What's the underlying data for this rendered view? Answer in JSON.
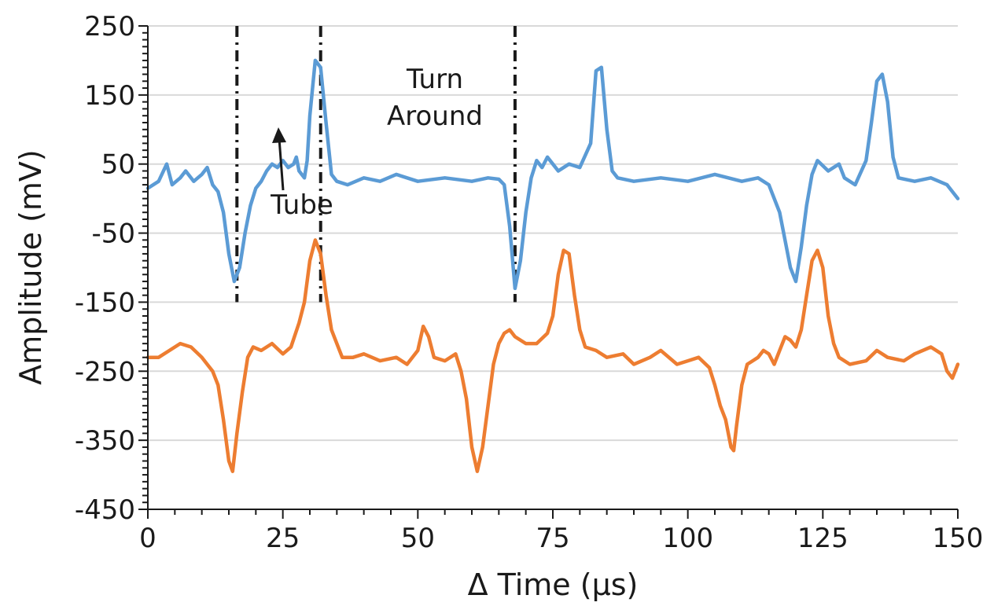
{
  "chart_data": {
    "type": "line",
    "title": "",
    "xlabel": "Δ Time (µs)",
    "ylabel": "Amplitude (mV)",
    "xlim": [
      0,
      150
    ],
    "ylim": [
      -450,
      250
    ],
    "xticks": [
      0,
      25,
      50,
      75,
      100,
      125,
      150
    ],
    "yticks": [
      250,
      150,
      50,
      -50,
      -150,
      -250,
      -350,
      -450
    ],
    "grid": "horizontal",
    "legend": "none",
    "series": [
      {
        "color": "#5b9bd5",
        "points": [
          [
            0,
            15
          ],
          [
            2,
            25
          ],
          [
            3.5,
            50
          ],
          [
            4.5,
            20
          ],
          [
            6,
            30
          ],
          [
            7,
            40
          ],
          [
            8.5,
            25
          ],
          [
            10,
            35
          ],
          [
            11,
            45
          ],
          [
            12,
            20
          ],
          [
            13,
            10
          ],
          [
            14,
            -20
          ],
          [
            15,
            -80
          ],
          [
            16,
            -120
          ],
          [
            17,
            -100
          ],
          [
            18,
            -50
          ],
          [
            19,
            -10
          ],
          [
            20,
            15
          ],
          [
            21,
            25
          ],
          [
            22,
            40
          ],
          [
            23,
            50
          ],
          [
            24,
            45
          ],
          [
            25,
            55
          ],
          [
            26,
            45
          ],
          [
            27,
            50
          ],
          [
            27.5,
            60
          ],
          [
            28,
            40
          ],
          [
            29,
            30
          ],
          [
            29.5,
            55
          ],
          [
            30,
            120
          ],
          [
            31,
            200
          ],
          [
            32,
            190
          ],
          [
            33,
            110
          ],
          [
            34,
            35
          ],
          [
            35,
            25
          ],
          [
            37,
            20
          ],
          [
            40,
            30
          ],
          [
            43,
            25
          ],
          [
            46,
            35
          ],
          [
            50,
            25
          ],
          [
            55,
            30
          ],
          [
            60,
            25
          ],
          [
            63,
            30
          ],
          [
            65,
            28
          ],
          [
            66,
            20
          ],
          [
            67,
            -40
          ],
          [
            68,
            -130
          ],
          [
            69,
            -90
          ],
          [
            70,
            -20
          ],
          [
            71,
            30
          ],
          [
            72,
            55
          ],
          [
            73,
            45
          ],
          [
            74,
            60
          ],
          [
            75,
            50
          ],
          [
            76,
            40
          ],
          [
            78,
            50
          ],
          [
            80,
            45
          ],
          [
            82,
            80
          ],
          [
            83,
            185
          ],
          [
            84,
            190
          ],
          [
            85,
            100
          ],
          [
            86,
            40
          ],
          [
            87,
            30
          ],
          [
            90,
            25
          ],
          [
            95,
            30
          ],
          [
            100,
            25
          ],
          [
            105,
            35
          ],
          [
            110,
            25
          ],
          [
            113,
            30
          ],
          [
            115,
            20
          ],
          [
            117,
            -20
          ],
          [
            119,
            -100
          ],
          [
            120,
            -120
          ],
          [
            121,
            -70
          ],
          [
            122,
            -10
          ],
          [
            123,
            35
          ],
          [
            124,
            55
          ],
          [
            126,
            40
          ],
          [
            128,
            50
          ],
          [
            129,
            30
          ],
          [
            131,
            20
          ],
          [
            133,
            55
          ],
          [
            134,
            110
          ],
          [
            135,
            170
          ],
          [
            136,
            180
          ],
          [
            137,
            140
          ],
          [
            138,
            60
          ],
          [
            139,
            30
          ],
          [
            142,
            25
          ],
          [
            145,
            30
          ],
          [
            148,
            20
          ],
          [
            150,
            0
          ]
        ]
      },
      {
        "color": "#ed7d31",
        "points": [
          [
            0,
            -230
          ],
          [
            2,
            -230
          ],
          [
            4,
            -220
          ],
          [
            6,
            -210
          ],
          [
            8,
            -215
          ],
          [
            10,
            -230
          ],
          [
            11,
            -240
          ],
          [
            12,
            -250
          ],
          [
            13,
            -270
          ],
          [
            14,
            -320
          ],
          [
            15,
            -380
          ],
          [
            15.7,
            -395
          ],
          [
            16.5,
            -340
          ],
          [
            17.5,
            -280
          ],
          [
            18.5,
            -230
          ],
          [
            19.5,
            -215
          ],
          [
            21,
            -220
          ],
          [
            23,
            -210
          ],
          [
            25,
            -225
          ],
          [
            26.5,
            -215
          ],
          [
            28,
            -180
          ],
          [
            29,
            -150
          ],
          [
            30,
            -90
          ],
          [
            31,
            -60
          ],
          [
            32,
            -80
          ],
          [
            33,
            -140
          ],
          [
            34,
            -190
          ],
          [
            35,
            -210
          ],
          [
            36,
            -230
          ],
          [
            38,
            -230
          ],
          [
            40,
            -225
          ],
          [
            43,
            -235
          ],
          [
            46,
            -230
          ],
          [
            48,
            -240
          ],
          [
            50,
            -220
          ],
          [
            51,
            -185
          ],
          [
            52,
            -200
          ],
          [
            53,
            -230
          ],
          [
            55,
            -235
          ],
          [
            57,
            -225
          ],
          [
            58,
            -250
          ],
          [
            59,
            -290
          ],
          [
            60,
            -360
          ],
          [
            61,
            -395
          ],
          [
            62,
            -360
          ],
          [
            63,
            -300
          ],
          [
            64,
            -240
          ],
          [
            65,
            -210
          ],
          [
            66,
            -195
          ],
          [
            67,
            -190
          ],
          [
            68,
            -200
          ],
          [
            70,
            -210
          ],
          [
            72,
            -210
          ],
          [
            74,
            -195
          ],
          [
            75,
            -170
          ],
          [
            76,
            -110
          ],
          [
            77,
            -75
          ],
          [
            78,
            -80
          ],
          [
            79,
            -140
          ],
          [
            80,
            -190
          ],
          [
            81,
            -215
          ],
          [
            83,
            -220
          ],
          [
            85,
            -230
          ],
          [
            88,
            -225
          ],
          [
            90,
            -240
          ],
          [
            93,
            -230
          ],
          [
            95,
            -220
          ],
          [
            98,
            -240
          ],
          [
            100,
            -235
          ],
          [
            102,
            -230
          ],
          [
            104,
            -245
          ],
          [
            105,
            -270
          ],
          [
            106,
            -300
          ],
          [
            107,
            -320
          ],
          [
            108,
            -360
          ],
          [
            108.5,
            -365
          ],
          [
            109,
            -330
          ],
          [
            110,
            -270
          ],
          [
            111,
            -240
          ],
          [
            112,
            -235
          ],
          [
            113,
            -230
          ],
          [
            114,
            -220
          ],
          [
            115,
            -225
          ],
          [
            116,
            -240
          ],
          [
            117,
            -220
          ],
          [
            118,
            -200
          ],
          [
            119,
            -205
          ],
          [
            120,
            -215
          ],
          [
            121,
            -190
          ],
          [
            122,
            -140
          ],
          [
            123,
            -90
          ],
          [
            124,
            -75
          ],
          [
            125,
            -100
          ],
          [
            126,
            -170
          ],
          [
            127,
            -210
          ],
          [
            128,
            -230
          ],
          [
            130,
            -240
          ],
          [
            133,
            -235
          ],
          [
            135,
            -220
          ],
          [
            137,
            -230
          ],
          [
            140,
            -235
          ],
          [
            142,
            -225
          ],
          [
            145,
            -215
          ],
          [
            147,
            -225
          ],
          [
            148,
            -250
          ],
          [
            149,
            -260
          ],
          [
            150,
            -240
          ]
        ]
      }
    ],
    "vlines": [
      16.5,
      32,
      68
    ],
    "annotations": [
      {
        "id": "turn",
        "lines": [
          "Turn",
          "Around"
        ]
      },
      {
        "id": "tube",
        "text": "Tube"
      }
    ]
  }
}
